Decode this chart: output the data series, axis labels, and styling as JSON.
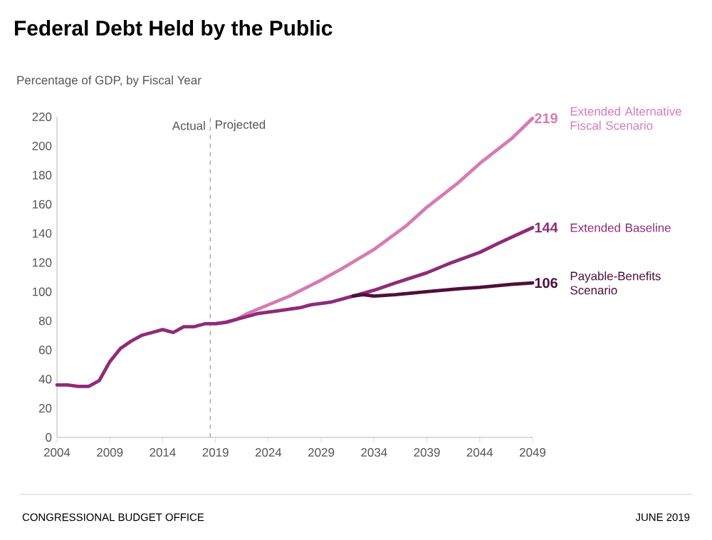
{
  "chart_data": {
    "type": "line",
    "title": "Federal Debt Held by the Public",
    "subtitle": "Percentage of GDP, by Fiscal Year",
    "xlim": [
      2004,
      2049
    ],
    "ylim": [
      0,
      220
    ],
    "xticks": [
      2004,
      2009,
      2014,
      2019,
      2024,
      2029,
      2034,
      2039,
      2044,
      2049
    ],
    "yticks": [
      0,
      20,
      40,
      60,
      80,
      100,
      120,
      140,
      160,
      180,
      200,
      220
    ],
    "series": [
      {
        "name": "Extended Alternative Fiscal Scenario",
        "color": "#d67bb3",
        "x": [
          2019,
          2020,
          2021,
          2022,
          2024,
          2026,
          2029,
          2031,
          2034,
          2037,
          2039,
          2042,
          2044,
          2047,
          2049
        ],
        "values": [
          78,
          79,
          81,
          85,
          91,
          97,
          108,
          116,
          129,
          145,
          158,
          175,
          188,
          205,
          219
        ],
        "value_labels": [
          null,
          null,
          null,
          null,
          null,
          null,
          null,
          null,
          null,
          null,
          null,
          null,
          null,
          null,
          "219"
        ]
      },
      {
        "name": "Extended Baseline",
        "color": "#8e2c79",
        "x": [
          2004,
          2005,
          2006,
          2007,
          2008,
          2009,
          2010,
          2011,
          2012,
          2013,
          2014,
          2015,
          2016,
          2017,
          2018,
          2019,
          2020,
          2021,
          2022,
          2023,
          2024,
          2025,
          2026,
          2027,
          2028,
          2029,
          2030,
          2031,
          2032,
          2033,
          2034,
          2036,
          2039,
          2041,
          2044,
          2046,
          2049
        ],
        "values": [
          36,
          36,
          35,
          35,
          39,
          52,
          61,
          66,
          70,
          72,
          74,
          72,
          76,
          76,
          78,
          78,
          79,
          81,
          83,
          85,
          86,
          87,
          88,
          89,
          91,
          92,
          93,
          95,
          97,
          99,
          101,
          106,
          113,
          119,
          127,
          134,
          144
        ],
        "value_labels": [
          null,
          null,
          null,
          null,
          null,
          null,
          null,
          null,
          null,
          null,
          null,
          null,
          null,
          null,
          null,
          null,
          null,
          null,
          null,
          null,
          null,
          null,
          null,
          null,
          null,
          null,
          null,
          null,
          null,
          null,
          null,
          null,
          null,
          null,
          null,
          null,
          "144"
        ]
      },
      {
        "name": "Payable-Benefits Scenario",
        "color": "#4f0f3c",
        "x": [
          2032,
          2033,
          2034,
          2036,
          2039,
          2042,
          2044,
          2047,
          2049
        ],
        "values": [
          97,
          98,
          97,
          98,
          100,
          102,
          103,
          105,
          106
        ],
        "value_labels": [
          null,
          null,
          null,
          null,
          null,
          null,
          null,
          null,
          "106"
        ]
      }
    ],
    "ref_lines": [
      {
        "axis": "x",
        "value": 2018.5,
        "color": "#999999",
        "line_style": "dashed"
      }
    ],
    "annotations": [
      {
        "text": "Actual",
        "x": 2018.5,
        "y": 214
      },
      {
        "text": "Projected",
        "x": 2018.5,
        "y": 214
      },
      "CONGRESSIONAL BUDGET OFFICE",
      "JUNE 2019"
    ]
  }
}
